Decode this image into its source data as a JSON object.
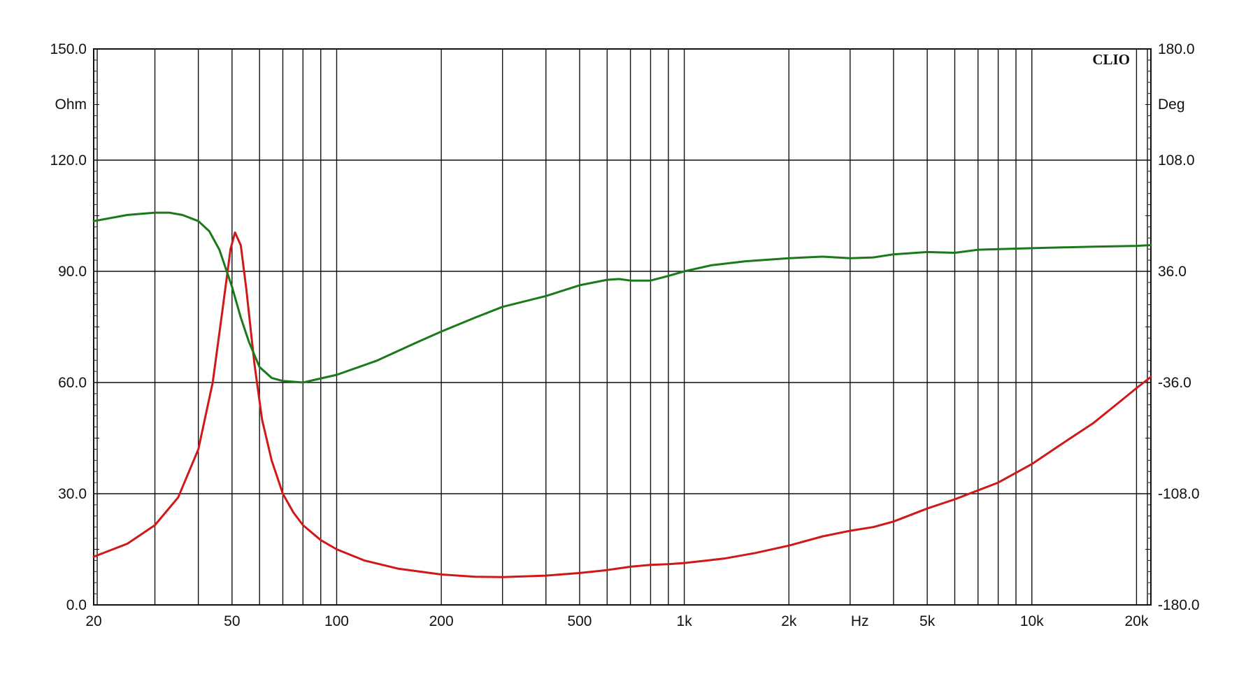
{
  "chart_data": {
    "type": "line",
    "brand": "CLIO",
    "x_scale": "log",
    "xlim": [
      20,
      22000
    ],
    "xlabel": "Hz",
    "x_major_ticks": [
      {
        "value": 20,
        "label": "20"
      },
      {
        "value": 50,
        "label": "50"
      },
      {
        "value": 100,
        "label": "100"
      },
      {
        "value": 200,
        "label": "200"
      },
      {
        "value": 500,
        "label": "500"
      },
      {
        "value": 1000,
        "label": "1k"
      },
      {
        "value": 2000,
        "label": "2k"
      },
      {
        "value": 5000,
        "label": "5k"
      },
      {
        "value": 10000,
        "label": "10k"
      },
      {
        "value": 20000,
        "label": "20k"
      }
    ],
    "x_gridlines": [
      30,
      40,
      50,
      60,
      70,
      80,
      90,
      100,
      200,
      300,
      400,
      500,
      600,
      700,
      800,
      900,
      1000,
      2000,
      3000,
      4000,
      5000,
      6000,
      7000,
      8000,
      9000,
      10000,
      20000
    ],
    "y_left": {
      "unit": "Ohm",
      "ylim": [
        0,
        150
      ],
      "ticks": [
        {
          "value": 0,
          "label": "0.0"
        },
        {
          "value": 30,
          "label": "30.0"
        },
        {
          "value": 60,
          "label": "60.0"
        },
        {
          "value": 90,
          "label": "90.0"
        },
        {
          "value": 120,
          "label": "120.0"
        },
        {
          "value": 150,
          "label": "150.0"
        }
      ]
    },
    "y_right": {
      "unit": "Deg",
      "ylim": [
        -180,
        180
      ],
      "ticks": [
        {
          "value": -180,
          "label": "-180.0"
        },
        {
          "value": -108,
          "label": "-108.0"
        },
        {
          "value": -36,
          "label": "-36.0"
        },
        {
          "value": 36,
          "label": "36.0"
        },
        {
          "value": 108,
          "label": "108.0"
        },
        {
          "value": 180,
          "label": "180.0"
        }
      ]
    },
    "grid": true,
    "series": [
      {
        "color": "#d01818",
        "axis": "left",
        "points": [
          [
            20,
            13
          ],
          [
            25,
            16.5
          ],
          [
            30,
            21.5
          ],
          [
            35,
            29
          ],
          [
            40,
            42
          ],
          [
            44,
            60
          ],
          [
            47,
            80
          ],
          [
            49.5,
            96
          ],
          [
            51,
            100.5
          ],
          [
            53,
            97
          ],
          [
            55,
            85
          ],
          [
            58,
            65
          ],
          [
            61,
            50
          ],
          [
            65,
            39
          ],
          [
            70,
            30
          ],
          [
            75,
            25
          ],
          [
            80,
            21.5
          ],
          [
            90,
            17.5
          ],
          [
            100,
            15
          ],
          [
            120,
            12
          ],
          [
            150,
            9.8
          ],
          [
            200,
            8.2
          ],
          [
            250,
            7.6
          ],
          [
            300,
            7.5
          ],
          [
            400,
            7.9
          ],
          [
            500,
            8.6
          ],
          [
            600,
            9.4
          ],
          [
            700,
            10.3
          ],
          [
            800,
            10.8
          ],
          [
            900,
            11
          ],
          [
            1000,
            11.3
          ],
          [
            1300,
            12.5
          ],
          [
            1600,
            14
          ],
          [
            2000,
            16
          ],
          [
            2500,
            18.5
          ],
          [
            3000,
            20
          ],
          [
            3500,
            21
          ],
          [
            4000,
            22.5
          ],
          [
            5000,
            26
          ],
          [
            6000,
            28.5
          ],
          [
            8000,
            33
          ],
          [
            10000,
            38
          ],
          [
            12000,
            43
          ],
          [
            15000,
            49
          ],
          [
            18000,
            55
          ],
          [
            20000,
            58.5
          ],
          [
            22000,
            61.5
          ]
        ]
      },
      {
        "color": "#1a7a1a",
        "axis": "right",
        "points": [
          [
            20,
            68.5
          ],
          [
            25,
            72.5
          ],
          [
            30,
            74
          ],
          [
            33,
            74
          ],
          [
            36,
            72.5
          ],
          [
            40,
            68.5
          ],
          [
            43,
            62
          ],
          [
            46,
            50
          ],
          [
            50,
            26
          ],
          [
            53,
            6
          ],
          [
            56,
            -10
          ],
          [
            60,
            -26
          ],
          [
            65,
            -33
          ],
          [
            70,
            -35
          ],
          [
            80,
            -36
          ],
          [
            100,
            -31
          ],
          [
            130,
            -22
          ],
          [
            170,
            -10
          ],
          [
            200,
            -3
          ],
          [
            250,
            6
          ],
          [
            300,
            13
          ],
          [
            400,
            20
          ],
          [
            500,
            27
          ],
          [
            600,
            30.5
          ],
          [
            650,
            31
          ],
          [
            700,
            30
          ],
          [
            800,
            30
          ],
          [
            900,
            33
          ],
          [
            1000,
            36
          ],
          [
            1200,
            40
          ],
          [
            1500,
            42.5
          ],
          [
            2000,
            44.5
          ],
          [
            2500,
            45.5
          ],
          [
            3000,
            44.5
          ],
          [
            3500,
            45
          ],
          [
            4000,
            47
          ],
          [
            5000,
            48.5
          ],
          [
            6000,
            48
          ],
          [
            7000,
            50
          ],
          [
            10000,
            51
          ],
          [
            15000,
            52
          ],
          [
            20000,
            52.5
          ],
          [
            22000,
            53
          ]
        ]
      }
    ]
  }
}
